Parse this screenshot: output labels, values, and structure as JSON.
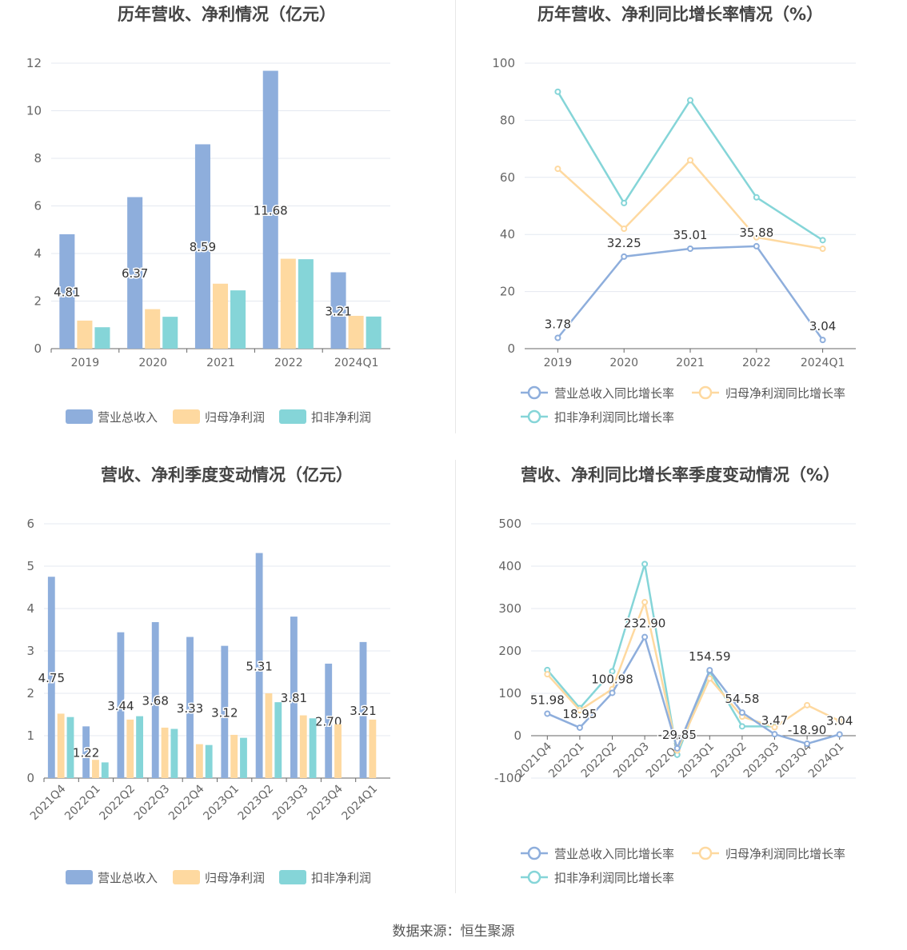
{
  "source_text": "数据来源：恒生聚源",
  "colors": {
    "revenue": "#8eaedc",
    "net_profit": "#fed9a0",
    "deducted_profit": "#85d5d8",
    "revenue_line": "#8eaedc",
    "net_profit_line": "#fed9a0",
    "deducted_line": "#85d5d8"
  },
  "chart_data": [
    {
      "type": "bar",
      "title": "历年营收、净利情况（亿元）",
      "categories": [
        "2019",
        "2020",
        "2021",
        "2022",
        "2024Q1"
      ],
      "ylim": [
        0,
        12
      ],
      "yticks": [
        0,
        2,
        4,
        6,
        8,
        10,
        12
      ],
      "legend_position": "bottom",
      "series": [
        {
          "name": "营业总收入",
          "values": [
            4.81,
            6.37,
            8.59,
            11.68,
            3.21
          ],
          "labels": [
            "4.81",
            "6.37",
            "8.59",
            "11.68",
            "3.21"
          ]
        },
        {
          "name": "归母净利润",
          "values": [
            1.18,
            1.66,
            2.73,
            3.78,
            1.38
          ]
        },
        {
          "name": "扣非净利润",
          "values": [
            0.9,
            1.34,
            2.45,
            3.76,
            1.35
          ]
        }
      ]
    },
    {
      "type": "line",
      "title": "历年营收、净利同比增长率情况（%）",
      "categories": [
        "2019",
        "2020",
        "2021",
        "2022",
        "2024Q1"
      ],
      "ylim": [
        0,
        100
      ],
      "yticks": [
        0,
        20,
        40,
        60,
        80,
        100
      ],
      "legend_position": "bottom",
      "series": [
        {
          "name": "营业总收入同比增长率",
          "values": [
            3.78,
            32.25,
            35.01,
            35.88,
            3.04
          ],
          "labels": [
            "3.78",
            "32.25",
            "35.01",
            "35.88",
            "3.04"
          ]
        },
        {
          "name": "归母净利润同比增长率",
          "values": [
            63,
            42,
            66,
            39,
            35
          ]
        },
        {
          "name": "扣非净利润同比增长率",
          "values": [
            90,
            51,
            87,
            53,
            38
          ]
        }
      ]
    },
    {
      "type": "bar",
      "title": "营收、净利季度变动情况（亿元）",
      "categories": [
        "2021Q4",
        "2022Q1",
        "2022Q2",
        "2022Q3",
        "2022Q4",
        "2023Q1",
        "2023Q2",
        "2023Q3",
        "2023Q4",
        "2024Q1"
      ],
      "ylim": [
        0,
        6
      ],
      "yticks": [
        0,
        1,
        2,
        3,
        4,
        5,
        6
      ],
      "legend_position": "bottom",
      "series": [
        {
          "name": "营业总收入",
          "values": [
            4.75,
            1.22,
            3.44,
            3.68,
            3.33,
            3.12,
            5.31,
            3.81,
            2.7,
            3.21
          ],
          "labels": [
            "4.75",
            "1.22",
            "3.44",
            "3.68",
            "3.33",
            "3.12",
            "5.31",
            "3.81",
            "2.70",
            "3.21"
          ]
        },
        {
          "name": "归母净利润",
          "values": [
            1.52,
            0.43,
            1.38,
            1.19,
            0.8,
            1.02,
            2.0,
            1.48,
            1.27,
            1.38
          ]
        },
        {
          "name": "扣非净利润",
          "values": [
            1.44,
            0.37,
            1.46,
            1.16,
            0.78,
            0.95,
            1.79,
            1.41,
            null,
            null
          ]
        }
      ]
    },
    {
      "type": "line",
      "title": "营收、净利同比增长率季度变动情况（%）",
      "categories": [
        "2021Q4",
        "2022Q1",
        "2022Q2",
        "2022Q3",
        "2022Q4",
        "2023Q1",
        "2023Q2",
        "2023Q3",
        "2023Q4",
        "2024Q1"
      ],
      "ylim": [
        -100,
        500
      ],
      "yticks": [
        -100,
        0,
        100,
        200,
        300,
        400,
        500
      ],
      "legend_position": "bottom",
      "series": [
        {
          "name": "营业总收入同比增长率",
          "values": [
            51.98,
            18.95,
            100.98,
            232.9,
            -29.85,
            154.59,
            54.58,
            3.47,
            -18.9,
            3.04
          ],
          "labels": [
            "51.98",
            "18.95",
            "100.98",
            "232.90",
            "-29.85",
            "154.59",
            "54.58",
            "3.47",
            "-18.90",
            "3.04"
          ]
        },
        {
          "name": "归母净利润同比增长率",
          "values": [
            145,
            60,
            110,
            315,
            -35,
            135,
            45,
            20,
            72,
            35
          ]
        },
        {
          "name": "扣非净利润同比增长率",
          "values": [
            155,
            65,
            152,
            405,
            -45,
            152,
            22,
            22,
            null,
            null
          ]
        }
      ]
    }
  ]
}
